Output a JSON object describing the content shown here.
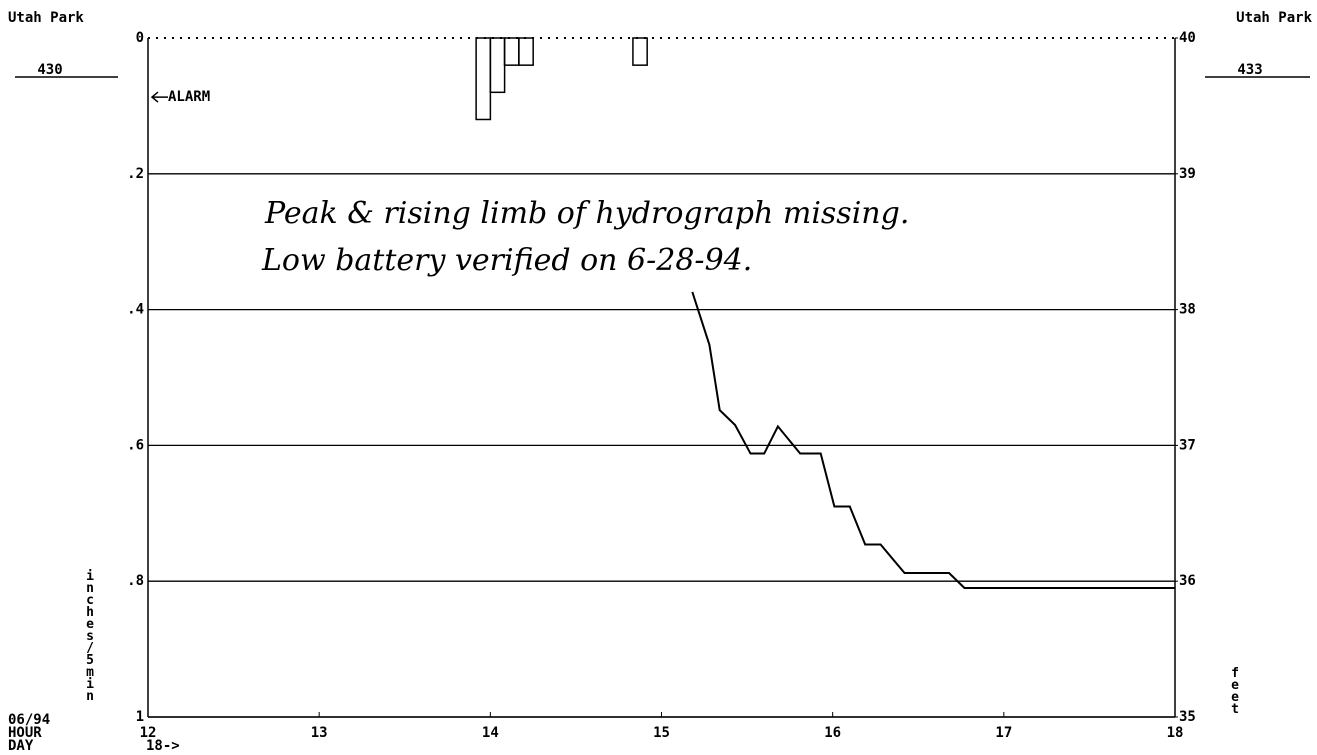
{
  "chart_data": {
    "type": "bar-line",
    "station_left": "Utah Park",
    "station_right": "Utah Park",
    "id_left": "430",
    "id_right": "433",
    "alarm_label": "ALARM",
    "alarm_level": 0.087,
    "y_label": "inches/5min",
    "y2_label": "feet",
    "date_label": "06/94",
    "hour_label": "HOUR",
    "day_label": "DAY",
    "day_marker": "18->",
    "annotation": [
      "Peak & rising limb of hydrograph missing.",
      "Low battery verified on 6-28-94."
    ],
    "xlim": [
      12,
      18
    ],
    "xticks": [
      12,
      13,
      14,
      15,
      16,
      17,
      18
    ],
    "ylim": [
      1,
      0
    ],
    "yticks": [
      0,
      {
        "value": 0.2,
        "label": ".2"
      },
      {
        "value": 0.4,
        "label": ".4"
      },
      {
        "value": 0.6,
        "label": ".6"
      },
      {
        "value": 0.8,
        "label": ".8"
      },
      1
    ],
    "y2lim": [
      35,
      40
    ],
    "y2ticks": [
      35,
      36,
      37,
      38,
      39,
      40
    ],
    "grid": true,
    "series": [
      {
        "type": "bar",
        "color": "#000000",
        "x": [
          13.917,
          14.0,
          14.083,
          14.167,
          14.833
        ],
        "values": [
          0.12,
          0.08,
          0.04,
          0.04,
          0.04
        ]
      },
      {
        "type": "line",
        "axis": "y2",
        "color": "#000000",
        "x": [
          15.18,
          15.28,
          15.34,
          15.43,
          15.52,
          15.6,
          15.68,
          15.81,
          15.93,
          16.01,
          16.1,
          16.19,
          16.28,
          16.42,
          16.68,
          16.77,
          18.0
        ],
        "values": [
          38.13,
          37.74,
          37.26,
          37.15,
          36.94,
          36.94,
          37.14,
          36.94,
          36.94,
          36.55,
          36.55,
          36.27,
          36.27,
          36.06,
          36.06,
          35.95,
          35.95
        ]
      }
    ]
  }
}
